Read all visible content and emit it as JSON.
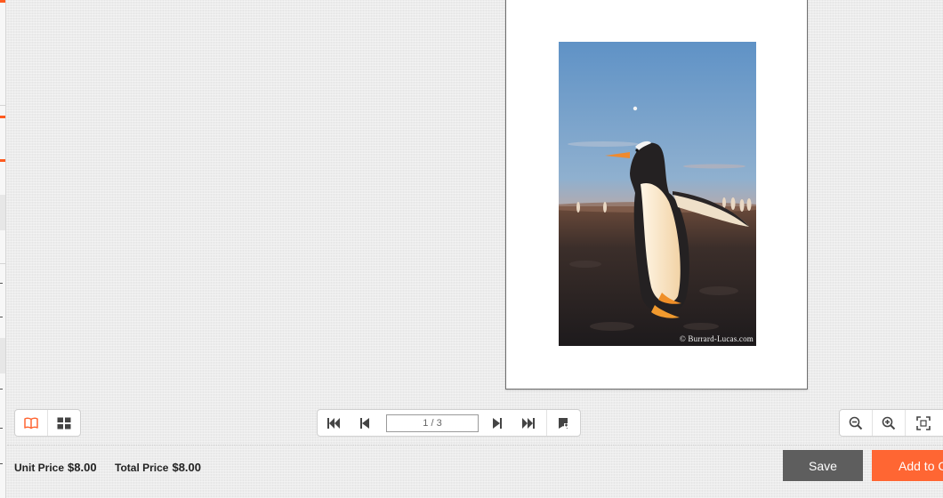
{
  "colors": {
    "accent": "#ff6633",
    "save": "#5e5e5e",
    "icon": "#444444"
  },
  "preview": {
    "watermark": "© Burrard-Lucas.com"
  },
  "view_toolbar": {
    "book_icon": "book-icon",
    "grid_icon": "grid-icon"
  },
  "pager": {
    "page_value": "1 / 3",
    "icons": [
      "first-page-icon",
      "prev-page-icon",
      "next-page-icon",
      "last-page-icon",
      "bookmark-icon"
    ]
  },
  "zoom_toolbar": {
    "icons": [
      "zoom-out-icon",
      "zoom-in-icon",
      "fit-screen-icon"
    ]
  },
  "footer": {
    "unit_price_label": "Unit Price",
    "unit_price_value": "$8.00",
    "total_price_label": "Total Price",
    "total_price_value": "$8.00",
    "save_label": "Save",
    "add_to_cart_label": "Add to Cart"
  }
}
